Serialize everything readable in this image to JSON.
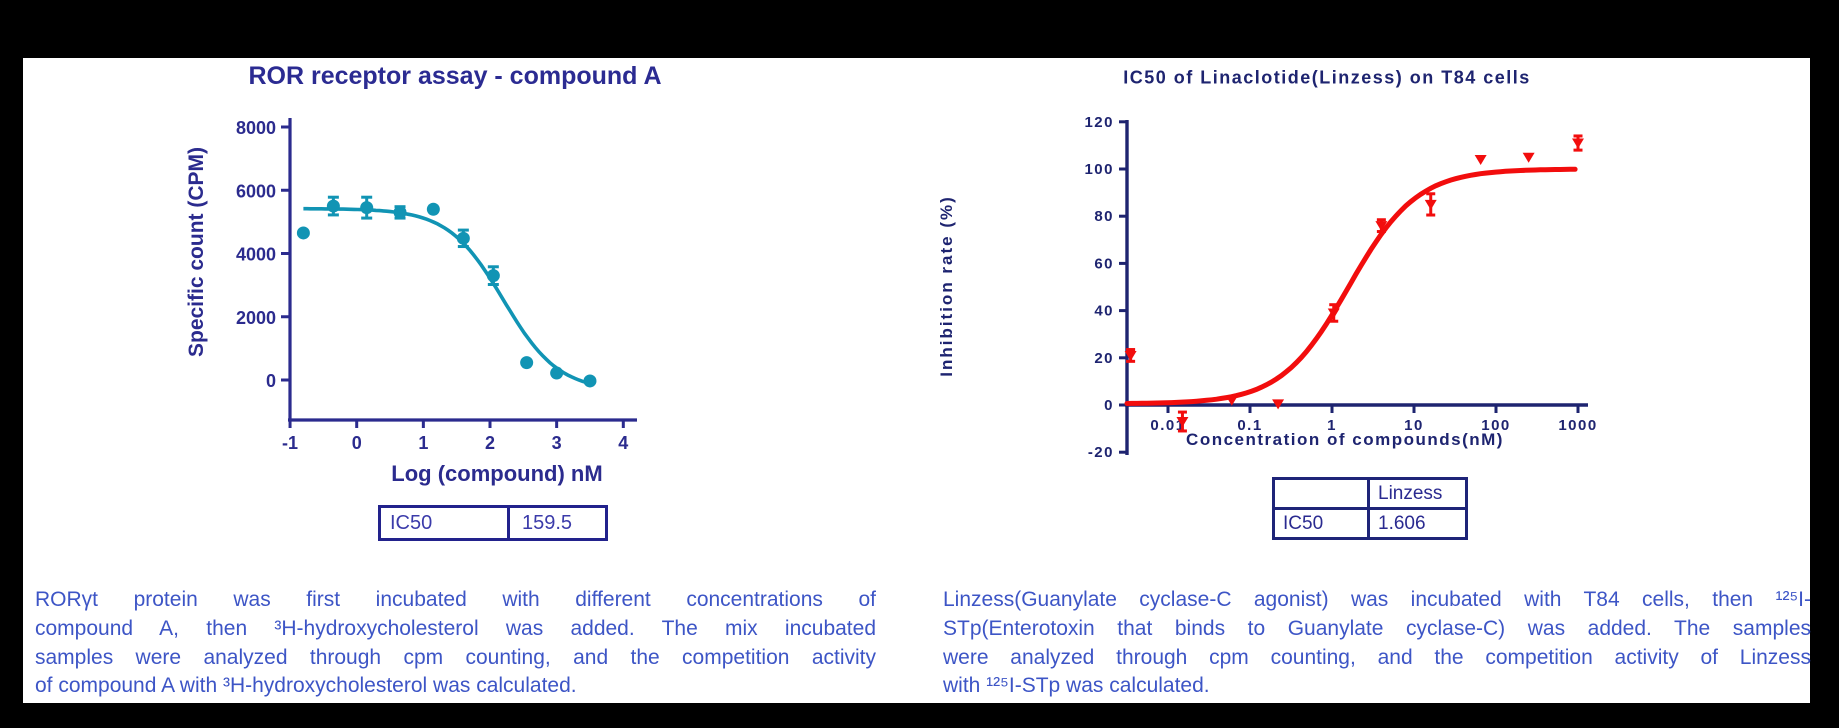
{
  "page": {
    "background": "#000000",
    "panel_background": "#ffffff"
  },
  "left_figure": {
    "ic50_table": {
      "label": "IC50",
      "value": "159.5"
    },
    "caption_lines": [
      "RORγt protein was first incubated with different concentrations of",
      "compound A, then ³H-hydroxycholesterol was added. The mix incubated",
      "samples were analyzed through cpm counting, and the competition activity",
      "of compound A with ³H-hydroxycholesterol was calculated."
    ],
    "accent_color": "#1194b4",
    "axis_color": "#2b2b8e"
  },
  "right_figure": {
    "ic50_table": {
      "corner": "",
      "header": "Linzess",
      "row_label": "IC50",
      "value": "1.606"
    },
    "caption_lines": [
      "Linzess(Guanylate cyclase-C agonist) was incubated with T84 cells, then ¹²⁵I-",
      "STp(Enterotoxin that binds to Guanylate cyclase-C) was added. The samples",
      "were analyzed through cpm counting, and the competition activity of Linzess",
      "with ¹²⁵I-STp was calculated."
    ],
    "accent_color": "#f20d0d",
    "axis_color": "#1e2470"
  },
  "chart_data": [
    {
      "type": "scatter",
      "title": "ROR receptor assay - compound A",
      "xlabel": "Log (compound) nM",
      "ylabel": "Specific count (CPM)",
      "xlim": [
        -1,
        4
      ],
      "ylim": [
        0,
        8000
      ],
      "xticks": [
        -1,
        0,
        1,
        2,
        3,
        4
      ],
      "yticks": [
        0,
        2000,
        4000,
        6000,
        8000
      ],
      "grid": false,
      "legend": false,
      "series": [
        {
          "name": "compound A",
          "marker": "circle",
          "color": "#1194b4",
          "points": [
            {
              "x": -0.8,
              "y": 4650,
              "err": 0
            },
            {
              "x": -0.35,
              "y": 5500,
              "err": 280
            },
            {
              "x": 0.15,
              "y": 5450,
              "err": 330
            },
            {
              "x": 0.65,
              "y": 5300,
              "err": 180
            },
            {
              "x": 1.15,
              "y": 5400,
              "err": 0
            },
            {
              "x": 1.6,
              "y": 4480,
              "err": 260
            },
            {
              "x": 2.05,
              "y": 3300,
              "err": 280
            },
            {
              "x": 2.55,
              "y": 550,
              "err": 0
            },
            {
              "x": 3.0,
              "y": 220,
              "err": 0
            },
            {
              "x": 3.5,
              "y": -30,
              "err": 0
            }
          ]
        }
      ],
      "fit_curve": {
        "model": "4PL",
        "top": 5420,
        "bottom": -350,
        "log_c50": 2.2,
        "hill_slope": -1.05,
        "logx_start": -0.8,
        "logx_end": 3.55
      },
      "ic50_nM": 159.5
    },
    {
      "type": "scatter",
      "title": "IC50 of Linaclotide(Linzess) on T84 cells",
      "xlabel": "Concentration of compounds(nM)",
      "ylabel": "Inhibition rate (%)",
      "xscale": "log",
      "xlim": [
        0.003,
        1200
      ],
      "ylim": [
        -20,
        120
      ],
      "xticks": [
        0.01,
        0.1,
        1,
        10,
        100,
        1000
      ],
      "yticks": [
        -20,
        0,
        20,
        40,
        60,
        80,
        100,
        120
      ],
      "grid": false,
      "legend": false,
      "series": [
        {
          "name": "Linzess",
          "marker": "triangle-down",
          "color": "#f20d0d",
          "points": [
            {
              "x": 0.0035,
              "y": 21,
              "err": 2.5
            },
            {
              "x": 0.015,
              "y": -7,
              "err": 4
            },
            {
              "x": 0.06,
              "y": 2,
              "err": 0
            },
            {
              "x": 0.22,
              "y": 0.5,
              "err": 0
            },
            {
              "x": 1.05,
              "y": 39,
              "err": 3.5
            },
            {
              "x": 4,
              "y": 76,
              "err": 2.5
            },
            {
              "x": 16,
              "y": 85,
              "err": 4.5
            },
            {
              "x": 65,
              "y": 104,
              "err": 0
            },
            {
              "x": 250,
              "y": 105,
              "err": 0
            },
            {
              "x": 1000,
              "y": 111,
              "err": 3
            }
          ]
        }
      ],
      "fit_curve": {
        "model": "4PL",
        "top": 100,
        "bottom": 0.5,
        "log_c50": 0.2058,
        "hill_slope": 1.05,
        "logx_start": -2.5,
        "logx_end": 2.965
      },
      "ic50_nM": 1.606
    }
  ]
}
